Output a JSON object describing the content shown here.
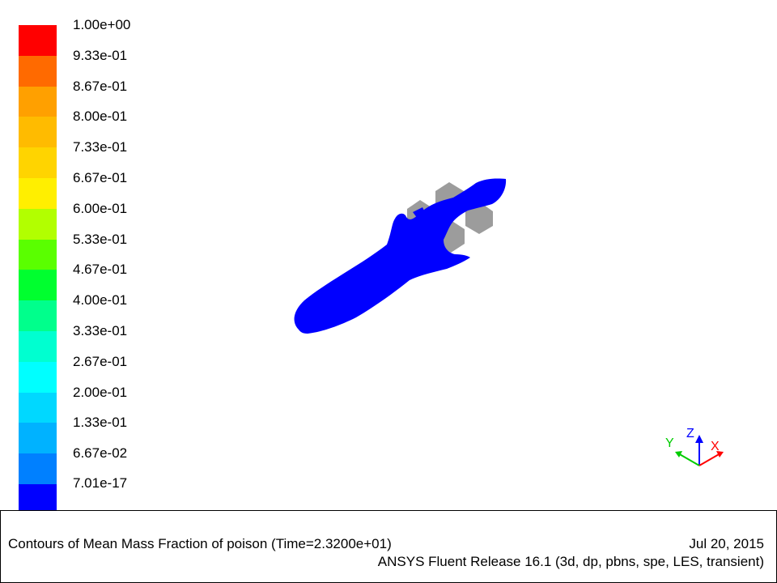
{
  "colorbar": {
    "labels": [
      "1.00e+00",
      "9.33e-01",
      "8.67e-01",
      "8.00e-01",
      "7.33e-01",
      "6.67e-01",
      "6.00e-01",
      "5.33e-01",
      "4.67e-01",
      "4.00e-01",
      "3.33e-01",
      "2.67e-01",
      "2.00e-01",
      "1.33e-01",
      "6.67e-02",
      "7.01e-17"
    ],
    "colors": [
      "#ff0000",
      "#ff6a00",
      "#ffa000",
      "#ffbb00",
      "#ffd400",
      "#ffef00",
      "#b2ff00",
      "#5aff00",
      "#00ff2f",
      "#00ff8c",
      "#00ffd0",
      "#00ffff",
      "#00d8ff",
      "#00b2ff",
      "#0080ff",
      "#0000ff"
    ]
  },
  "scene": {
    "body_color": "#0000ff",
    "part_color": "#9c9c9c"
  },
  "triad": {
    "x_label": "X",
    "y_label": "Y",
    "z_label": "Z",
    "x_color": "#ff0000",
    "y_color": "#00cc00",
    "z_color": "#0000ff"
  },
  "info": {
    "title": "Contours of Mean Mass Fraction of poison  (Time=2.3200e+01)",
    "date": "Jul 20, 2015",
    "release": "ANSYS Fluent Release 16.1 (3d, dp, pbns, spe, LES, transient)"
  }
}
